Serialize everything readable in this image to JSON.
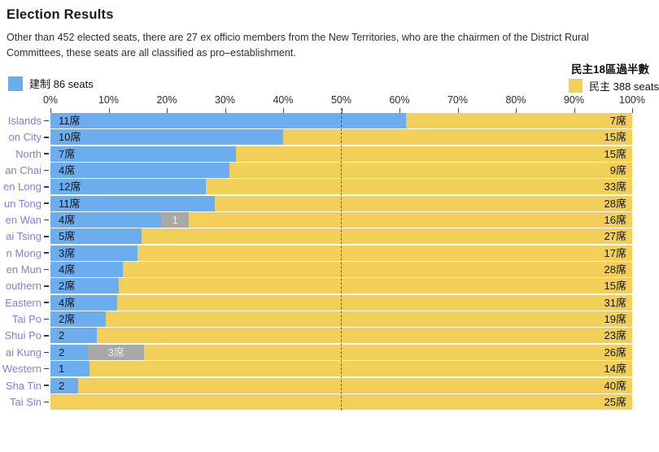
{
  "header": {
    "title": "Election Results",
    "description_lines": [
      "Other than 452 elected seats, there are 27 ex officio members from the New Territories, who are the chairmen of the District Rural",
      "Committees, these seats are all classified as pro–establishment."
    ],
    "annotation": "民主18區過半數"
  },
  "legend": {
    "establishment": {
      "label": "建制 86 seats",
      "color": "#6cadf0"
    },
    "democracy": {
      "label": "民主 388 seats",
      "color": "#f2cf58"
    }
  },
  "colors": {
    "establishment": "#6cadf0",
    "democracy": "#f2cf58",
    "other": "#a9a8a7",
    "row_label": "#8b7bd3"
  },
  "chart_data": {
    "type": "bar",
    "orientation": "horizontal",
    "stacked": true,
    "title": "Election Results",
    "x_axis": {
      "ticks": [
        "0%",
        "10%",
        "20%",
        "30%",
        "40%",
        "50%",
        "60%",
        "70%",
        "80%",
        "90%",
        "100%"
      ],
      "range_percent": [
        0,
        100
      ],
      "reference_line_percent": 50
    },
    "series_names": [
      "建制 (pro-establishment)",
      "other",
      "民主 (pro-democracy)"
    ],
    "totals": {
      "establishment": 86,
      "democracy": 388
    },
    "rows": [
      {
        "label": "Islands",
        "est": 11,
        "est_label": "11席",
        "other": 0,
        "other_label": "",
        "dem": 7,
        "dem_label": "7席"
      },
      {
        "label": "on City",
        "est": 10,
        "est_label": "10席",
        "other": 0,
        "other_label": "",
        "dem": 15,
        "dem_label": "15席"
      },
      {
        "label": "North",
        "est": 7,
        "est_label": "7席",
        "other": 0,
        "other_label": "",
        "dem": 15,
        "dem_label": "15席"
      },
      {
        "label": "an Chai",
        "est": 4,
        "est_label": "4席",
        "other": 0,
        "other_label": "",
        "dem": 9,
        "dem_label": "9席"
      },
      {
        "label": "en Long",
        "est": 12,
        "est_label": "12席",
        "other": 0,
        "other_label": "",
        "dem": 33,
        "dem_label": "33席"
      },
      {
        "label": "un Tong",
        "est": 11,
        "est_label": "11席",
        "other": 0,
        "other_label": "",
        "dem": 28,
        "dem_label": "28席"
      },
      {
        "label": "en Wan",
        "est": 4,
        "est_label": "4席",
        "other": 1,
        "other_label": "1",
        "dem": 16,
        "dem_label": "16席"
      },
      {
        "label": "ai Tsing",
        "est": 5,
        "est_label": "5席",
        "other": 0,
        "other_label": "",
        "dem": 27,
        "dem_label": "27席"
      },
      {
        "label": "n Mong",
        "est": 3,
        "est_label": "3席",
        "other": 0,
        "other_label": "",
        "dem": 17,
        "dem_label": "17席"
      },
      {
        "label": "en Mun",
        "est": 4,
        "est_label": "4席",
        "other": 0,
        "other_label": "",
        "dem": 28,
        "dem_label": "28席"
      },
      {
        "label": "outhern",
        "est": 2,
        "est_label": "2席",
        "other": 0,
        "other_label": "",
        "dem": 15,
        "dem_label": "15席"
      },
      {
        "label": "Eastern",
        "est": 4,
        "est_label": "4席",
        "other": 0,
        "other_label": "",
        "dem": 31,
        "dem_label": "31席"
      },
      {
        "label": "Tai Po",
        "est": 2,
        "est_label": "2席",
        "other": 0,
        "other_label": "",
        "dem": 19,
        "dem_label": "19席"
      },
      {
        "label": "Shui Po",
        "est": 2,
        "est_label": "2",
        "other": 0,
        "other_label": "",
        "dem": 23,
        "dem_label": "23席"
      },
      {
        "label": "ai Kung",
        "est": 2,
        "est_label": "2",
        "other": 3,
        "other_label": "3席",
        "dem": 26,
        "dem_label": "26席"
      },
      {
        "label": "Western",
        "est": 1,
        "est_label": "1",
        "other": 0,
        "other_label": "",
        "dem": 14,
        "dem_label": "14席"
      },
      {
        "label": "Sha Tin",
        "est": 2,
        "est_label": "2",
        "other": 0,
        "other_label": "",
        "dem": 40,
        "dem_label": "40席"
      },
      {
        "label": "Tai Sin",
        "est": 0,
        "est_label": "",
        "other": 0,
        "other_label": "",
        "dem": 25,
        "dem_label": "25席"
      }
    ]
  }
}
